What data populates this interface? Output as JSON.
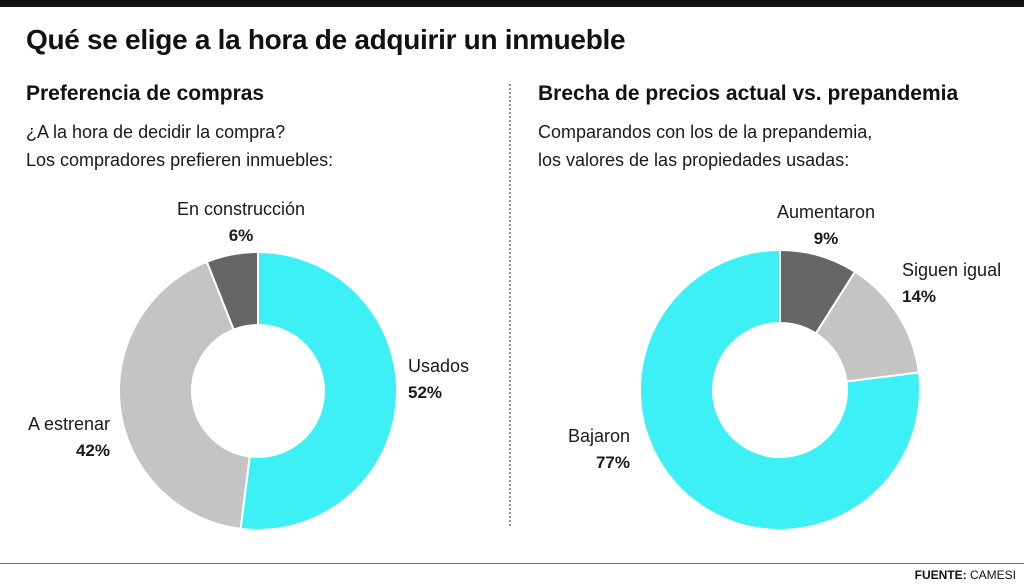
{
  "title": "Qué se elige a la hora de adquirir un inmueble",
  "source": {
    "label": "FUENTE:",
    "value": "CAMESI"
  },
  "colors": {
    "cyan": "#3df0f5",
    "gray_light": "#c4c4c4",
    "gray_dark": "#666666"
  },
  "panels": [
    {
      "title": "Preferencia de compras",
      "subtitle_lines": [
        "¿A la hora de decidir la compra?",
        "Los compradores prefieren inmuebles:"
      ]
    },
    {
      "title": "Brecha de precios actual vs. prepandemia",
      "subtitle_lines": [
        "Comparandos con los de la prepandemia,",
        "los valores de las propiedades usadas:"
      ]
    }
  ],
  "chart_data": [
    {
      "type": "pie",
      "variant": "donut",
      "title": "Preferencia de compras",
      "slices": [
        {
          "label": "Usados",
          "value": 52,
          "display": "52%",
          "color": "#3df0f5"
        },
        {
          "label": "A estrenar",
          "value": 42,
          "display": "42%",
          "color": "#c4c4c4"
        },
        {
          "label": "En construcción",
          "value": 6,
          "display": "6%",
          "color": "#666666"
        }
      ]
    },
    {
      "type": "pie",
      "variant": "donut",
      "title": "Brecha de precios actual vs. prepandemia",
      "slices": [
        {
          "label": "Aumentaron",
          "value": 9,
          "display": "9%",
          "color": "#666666"
        },
        {
          "label": "Siguen igual",
          "value": 14,
          "display": "14%",
          "color": "#c4c4c4"
        },
        {
          "label": "Bajaron",
          "value": 77,
          "display": "77%",
          "color": "#3df0f5"
        }
      ]
    }
  ]
}
